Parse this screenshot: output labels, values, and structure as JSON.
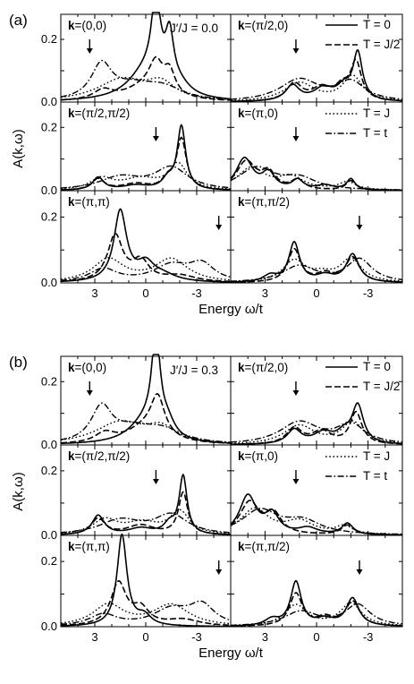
{
  "chart_data": {
    "type": "line",
    "xlabel": "Energy ω/t",
    "ylabel": "A(k,ω)",
    "xlim": [
      5,
      -5
    ],
    "ylim": [
      0,
      0.28
    ],
    "x_ticks": [
      "3",
      "0",
      "-3"
    ],
    "y_ticks": [
      "0.0",
      "0.2"
    ],
    "legend": [
      {
        "id": "T0",
        "label": "T = 0",
        "style": "solid"
      },
      {
        "id": "TJ2",
        "label": "T = J/2",
        "style": "dashed"
      },
      {
        "id": "TJ",
        "label": "T = J",
        "style": "dotted"
      },
      {
        "id": "Tt",
        "label": "T = t",
        "style": "dash-dot"
      }
    ],
    "figures": [
      {
        "label": "(a)",
        "annotation": "J′/J = 0.0",
        "panels": [
          {
            "k": "(0,0)",
            "arrow_x": 3.3,
            "series": {
              "T0": [
                [
                  0.0,
                  0.09,
                  1.3
                ],
                [
                  -0.6,
                  0.26,
                  0.32
                ],
                [
                  -1.4,
                  0.16,
                  0.3
                ],
                [
                  -2.0,
                  0.03,
                  0.8
                ]
              ],
              "TJ2": [
                [
                  0.0,
                  0.045,
                  1.5
                ],
                [
                  -0.6,
                  0.09,
                  0.5
                ],
                [
                  -1.4,
                  0.07,
                  0.4
                ],
                [
                  2.5,
                  0.03,
                  0.7
                ]
              ],
              "TJ": [
                [
                  1.4,
                  0.07,
                  1.8
                ],
                [
                  -0.9,
                  0.05,
                  1.0
                ]
              ],
              "Tt": [
                [
                  2.6,
                  0.11,
                  0.75
                ],
                [
                  0.8,
                  0.04,
                  1.5
                ],
                [
                  -1.0,
                  0.04,
                  1.5
                ]
              ]
            }
          },
          {
            "k": "(π/2,0)",
            "arrow_x": 1.2,
            "series": {
              "T0": [
                [
                  1.4,
                  0.05,
                  0.5
                ],
                [
                  -0.4,
                  0.04,
                  0.7
                ],
                [
                  -2.4,
                  0.15,
                  0.33
                ],
                [
                  -1.6,
                  0.04,
                  0.5
                ]
              ],
              "TJ2": [
                [
                  1.3,
                  0.055,
                  0.55
                ],
                [
                  -0.3,
                  0.04,
                  0.7
                ],
                [
                  -2.3,
                  0.12,
                  0.38
                ],
                [
                  -1.5,
                  0.04,
                  0.5
                ]
              ],
              "TJ": [
                [
                  1.0,
                  0.06,
                  1.1
                ],
                [
                  -2.1,
                  0.08,
                  0.7
                ]
              ],
              "Tt": [
                [
                  1.0,
                  0.07,
                  1.4
                ],
                [
                  -2.0,
                  0.06,
                  1.0
                ]
              ]
            }
          },
          {
            "k": "(π/2,π/2)",
            "arrow_x": -0.6,
            "series": {
              "T0": [
                [
                  2.8,
                  0.04,
                  0.4
                ],
                [
                  -2.1,
                  0.2,
                  0.3
                ],
                [
                  0.6,
                  0.015,
                  1.0
                ],
                [
                  -1.3,
                  0.03,
                  0.4
                ]
              ],
              "TJ2": [
                [
                  2.8,
                  0.035,
                  0.45
                ],
                [
                  -2.1,
                  0.16,
                  0.35
                ],
                [
                  0.6,
                  0.02,
                  1.0
                ],
                [
                  -1.3,
                  0.03,
                  0.4
                ]
              ],
              "TJ": [
                [
                  2.6,
                  0.035,
                  0.8
                ],
                [
                  -1.9,
                  0.08,
                  0.65
                ],
                [
                  0.3,
                  0.035,
                  1.3
                ]
              ],
              "Tt": [
                [
                  1.5,
                  0.04,
                  1.5
                ],
                [
                  -1.5,
                  0.07,
                  1.2
                ]
              ]
            }
          },
          {
            "k": "(π,0)",
            "arrow_x": 1.2,
            "series": {
              "T0": [
                [
                  4.2,
                  0.1,
                  0.6
                ],
                [
                  2.8,
                  0.05,
                  0.45
                ],
                [
                  1.1,
                  0.03,
                  0.4
                ],
                [
                  -2.0,
                  0.035,
                  0.3
                ],
                [
                  -0.5,
                  0.015,
                  0.6
                ]
              ],
              "TJ2": [
                [
                  4.1,
                  0.09,
                  0.7
                ],
                [
                  2.8,
                  0.05,
                  0.5
                ],
                [
                  1.1,
                  0.03,
                  0.45
                ],
                [
                  -2.0,
                  0.03,
                  0.35
                ]
              ],
              "TJ": [
                [
                  3.8,
                  0.07,
                  1.0
                ],
                [
                  1.5,
                  0.04,
                  0.9
                ],
                [
                  -1.8,
                  0.025,
                  0.6
                ]
              ],
              "Tt": [
                [
                  3.5,
                  0.07,
                  1.3
                ],
                [
                  1.0,
                  0.035,
                  1.2
                ]
              ]
            }
          },
          {
            "k": "(π,π)",
            "arrow_x": -4.3,
            "series": {
              "T0": [
                [
                  1.5,
                  0.215,
                  0.45
                ],
                [
                  0.0,
                  0.05,
                  0.6
                ],
                [
                  -1.0,
                  0.02,
                  1.0
                ]
              ],
              "TJ2": [
                [
                  1.8,
                  0.14,
                  0.55
                ],
                [
                  0.3,
                  0.06,
                  0.6
                ],
                [
                  -2.0,
                  0.02,
                  1.2
                ]
              ],
              "TJ": [
                [
                  2.2,
                  0.07,
                  1.1
                ],
                [
                  -1.5,
                  0.07,
                  1.2
                ]
              ],
              "Tt": [
                [
                  2.5,
                  0.04,
                  1.0
                ],
                [
                  -1.5,
                  0.05,
                  1.3
                ],
                [
                  -3.3,
                  0.05,
                  0.9
                ]
              ]
            }
          },
          {
            "k": "(π,π/2)",
            "arrow_x": -2.5,
            "series": {
              "T0": [
                [
                  1.3,
                  0.12,
                  0.38
                ],
                [
                  -2.1,
                  0.085,
                  0.45
                ],
                [
                  -0.5,
                  0.02,
                  0.6
                ],
                [
                  2.7,
                  0.02,
                  0.5
                ]
              ],
              "TJ2": [
                [
                  1.3,
                  0.1,
                  0.45
                ],
                [
                  -2.1,
                  0.075,
                  0.5
                ],
                [
                  -0.5,
                  0.025,
                  0.6
                ]
              ],
              "TJ": [
                [
                  1.3,
                  0.065,
                  0.8
                ],
                [
                  -2.0,
                  0.07,
                  0.75
                ],
                [
                  -0.3,
                  0.02,
                  0.8
                ]
              ],
              "Tt": [
                [
                  1.0,
                  0.05,
                  1.2
                ],
                [
                  -2.5,
                  0.07,
                  0.9
                ]
              ]
            }
          }
        ]
      },
      {
        "label": "(b)",
        "annotation": "J′/J = 0.3",
        "panels": [
          {
            "k": "(0,0)",
            "arrow_x": 3.3,
            "series": {
              "T0": [
                [
                  0.0,
                  0.07,
                  1.2
                ],
                [
                  -0.6,
                  0.3,
                  0.3
                ],
                [
                  -1.3,
                  0.04,
                  0.5
                ]
              ],
              "TJ2": [
                [
                  0.0,
                  0.05,
                  1.4
                ],
                [
                  -0.7,
                  0.12,
                  0.5
                ],
                [
                  2.4,
                  0.03,
                  0.7
                ]
              ],
              "TJ": [
                [
                  1.5,
                  0.07,
                  1.8
                ],
                [
                  -0.9,
                  0.045,
                  1.0
                ]
              ],
              "Tt": [
                [
                  2.6,
                  0.11,
                  0.75
                ],
                [
                  0.8,
                  0.04,
                  1.5
                ],
                [
                  -1.0,
                  0.04,
                  1.5
                ]
              ]
            }
          },
          {
            "k": "(π/2,0)",
            "arrow_x": 1.2,
            "series": {
              "T0": [
                [
                  1.3,
                  0.045,
                  0.5
                ],
                [
                  -0.4,
                  0.035,
                  0.7
                ],
                [
                  -2.4,
                  0.12,
                  0.4
                ],
                [
                  -1.6,
                  0.03,
                  0.5
                ]
              ],
              "TJ2": [
                [
                  1.3,
                  0.05,
                  0.55
                ],
                [
                  -0.3,
                  0.04,
                  0.7
                ],
                [
                  -2.3,
                  0.1,
                  0.42
                ]
              ],
              "TJ": [
                [
                  1.0,
                  0.06,
                  1.1
                ],
                [
                  -2.1,
                  0.07,
                  0.75
                ]
              ],
              "Tt": [
                [
                  1.0,
                  0.07,
                  1.4
                ],
                [
                  -2.0,
                  0.06,
                  1.0
                ]
              ]
            }
          },
          {
            "k": "(π/2,π/2)",
            "arrow_x": -0.6,
            "series": {
              "T0": [
                [
                  2.8,
                  0.06,
                  0.45
                ],
                [
                  -2.2,
                  0.18,
                  0.28
                ],
                [
                  0.3,
                  0.02,
                  0.9
                ],
                [
                  -1.4,
                  0.03,
                  0.4
                ]
              ],
              "TJ2": [
                [
                  2.8,
                  0.05,
                  0.5
                ],
                [
                  -2.2,
                  0.13,
                  0.33
                ],
                [
                  0.3,
                  0.03,
                  1.0
                ]
              ],
              "TJ": [
                [
                  2.4,
                  0.045,
                  0.9
                ],
                [
                  -2.0,
                  0.07,
                  0.7
                ],
                [
                  0.2,
                  0.035,
                  1.2
                ]
              ],
              "Tt": [
                [
                  1.5,
                  0.045,
                  1.5
                ],
                [
                  -1.5,
                  0.06,
                  1.2
                ]
              ]
            }
          },
          {
            "k": "(π,0)",
            "arrow_x": 1.2,
            "series": {
              "T0": [
                [
                  4.0,
                  0.12,
                  0.6
                ],
                [
                  2.6,
                  0.06,
                  0.5
                ],
                [
                  -1.8,
                  0.035,
                  0.4
                ],
                [
                  0.5,
                  0.02,
                  0.7
                ]
              ],
              "TJ2": [
                [
                  3.9,
                  0.1,
                  0.7
                ],
                [
                  2.5,
                  0.06,
                  0.55
                ],
                [
                  -1.8,
                  0.03,
                  0.45
                ]
              ],
              "TJ": [
                [
                  3.6,
                  0.08,
                  1.0
                ],
                [
                  1.0,
                  0.04,
                  1.0
                ],
                [
                  -1.6,
                  0.025,
                  0.6
                ]
              ],
              "Tt": [
                [
                  3.3,
                  0.075,
                  1.3
                ],
                [
                  0.8,
                  0.04,
                  1.3
                ]
              ]
            }
          },
          {
            "k": "(π,π)",
            "arrow_x": -4.3,
            "series": {
              "T0": [
                [
                  1.4,
                  0.28,
                  0.35
                ],
                [
                  0.1,
                  0.03,
                  0.5
                ]
              ],
              "TJ2": [
                [
                  1.6,
                  0.13,
                  0.55
                ],
                [
                  0.3,
                  0.05,
                  0.6
                ],
                [
                  -2.2,
                  0.02,
                  1.2
                ]
              ],
              "TJ": [
                [
                  2.2,
                  0.065,
                  1.1
                ],
                [
                  -1.5,
                  0.065,
                  1.3
                ]
              ],
              "Tt": [
                [
                  2.5,
                  0.035,
                  1.0
                ],
                [
                  -1.5,
                  0.05,
                  1.3
                ],
                [
                  -3.3,
                  0.06,
                  0.9
                ]
              ]
            }
          },
          {
            "k": "(π,π/2)",
            "arrow_x": -2.5,
            "series": {
              "T0": [
                [
                  1.2,
                  0.135,
                  0.38
                ],
                [
                  -2.1,
                  0.085,
                  0.45
                ],
                [
                  -0.5,
                  0.02,
                  0.6
                ],
                [
                  2.6,
                  0.02,
                  0.5
                ]
              ],
              "TJ2": [
                [
                  1.2,
                  0.1,
                  0.45
                ],
                [
                  -2.1,
                  0.075,
                  0.5
                ],
                [
                  -0.5,
                  0.025,
                  0.6
                ]
              ],
              "TJ": [
                [
                  1.2,
                  0.065,
                  0.8
                ],
                [
                  -2.0,
                  0.07,
                  0.75
                ]
              ],
              "Tt": [
                [
                  0.9,
                  0.045,
                  1.2
                ],
                [
                  -2.4,
                  0.065,
                  0.9
                ]
              ]
            }
          }
        ]
      }
    ]
  }
}
